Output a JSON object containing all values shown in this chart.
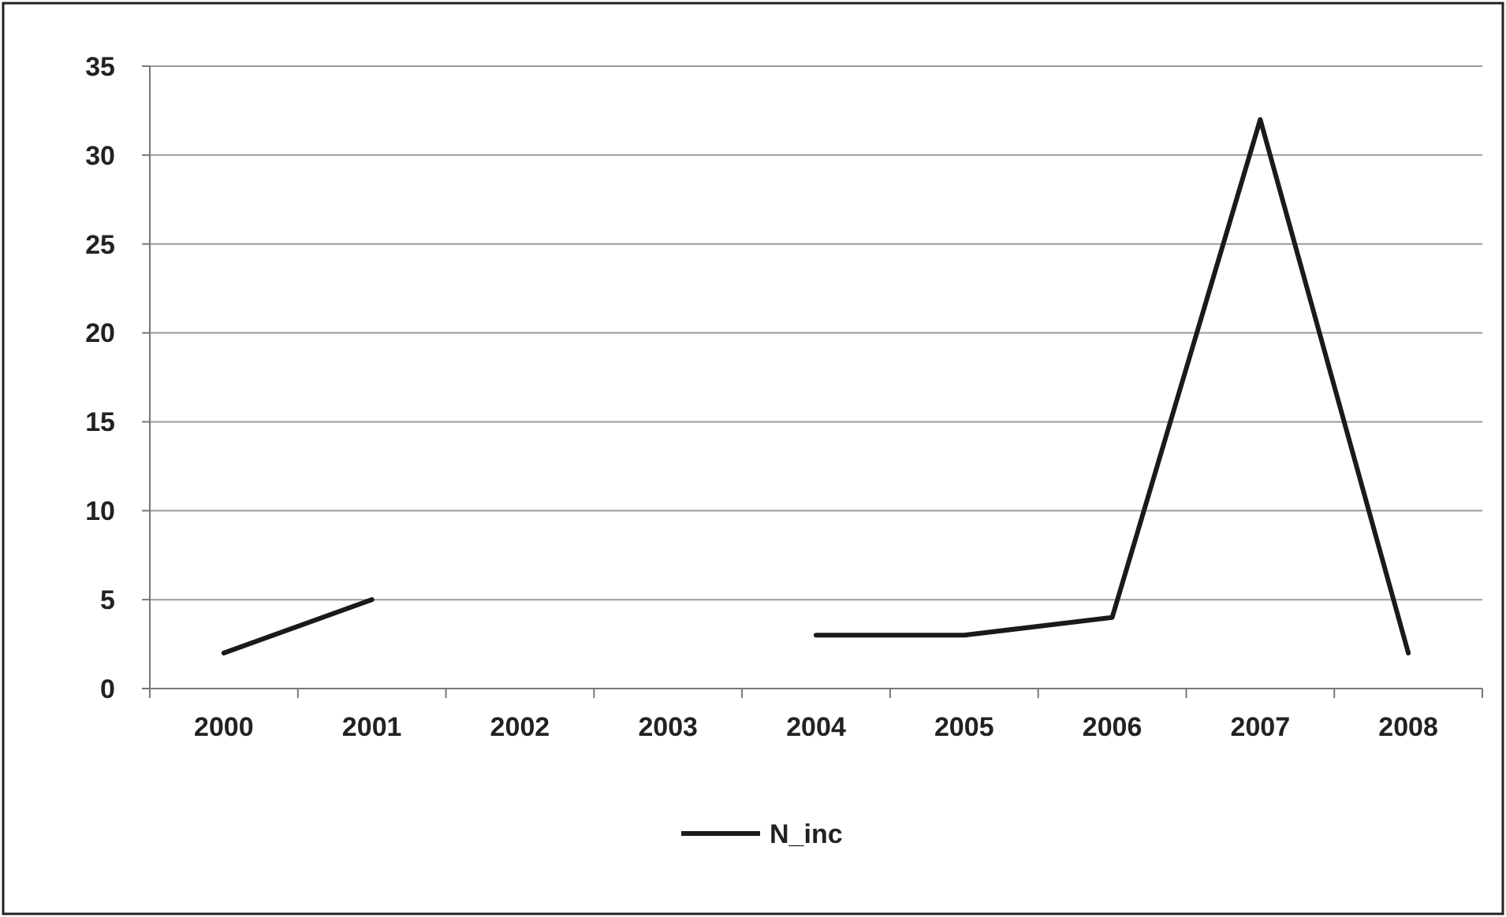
{
  "chart_data": {
    "type": "line",
    "categories": [
      "2000",
      "2001",
      "2002",
      "2003",
      "2004",
      "2005",
      "2006",
      "2007",
      "2008"
    ],
    "series": [
      {
        "name": "N_inc",
        "color": "#1a1a1a",
        "values": [
          2,
          5,
          null,
          null,
          3,
          3,
          4,
          32,
          2
        ]
      }
    ],
    "ylim": [
      0,
      35
    ],
    "yticks": [
      0,
      5,
      10,
      15,
      20,
      25,
      30,
      35
    ],
    "grid": "y",
    "legend": "bottom",
    "marker": "none",
    "line_style": "solid"
  }
}
